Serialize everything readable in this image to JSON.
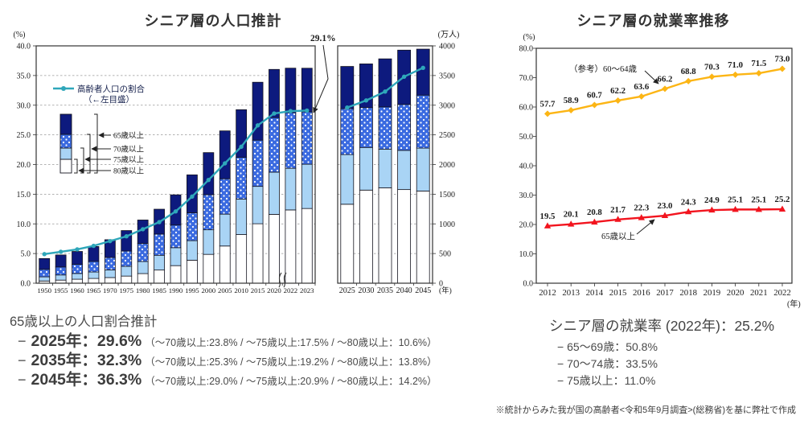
{
  "colors": {
    "navy": "#0d1a7e",
    "royal": "#3a6ae0",
    "light_blue": "#a9d4f5",
    "white": "#ffffff",
    "teal": "#2fa7ba",
    "yellow": "#fcb514",
    "red": "#f2141e",
    "grid": "#999999",
    "axis": "#333333",
    "text": "#1a1a1a"
  },
  "chart_data": [
    {
      "type": "bar+line",
      "title": "シニア層の人口推計",
      "left_axis": {
        "caption": "(%)",
        "min": 0,
        "max": 40,
        "step": 5
      },
      "right_axis": {
        "caption": "(万人)",
        "min": 0,
        "max": 4000,
        "step": 500
      },
      "x_caption": "(年)",
      "grid": true,
      "legend_line": {
        "name": "高齢者人口の割合",
        "note": "（←左目盛）"
      },
      "segment_labels": [
        "65歳以上",
        "70歳以上",
        "75歳以上",
        "80歳以上"
      ],
      "annotation": "29.1%",
      "panels": [
        {
          "categories": [
            "1950",
            "1955",
            "1960",
            "1965",
            "1970",
            "1975",
            "1980",
            "1985",
            "1990",
            "1995",
            "2000",
            "2005",
            "2010",
            "2015",
            "2020",
            "2022",
            "2023"
          ],
          "stacks": [
            {
              "name": "80歳以上",
              "fill": "white",
              "cumulative": [
                37,
                52,
                67,
                80,
                95,
                120,
                162,
                222,
                296,
                388,
                486,
                627,
                820,
                1002,
                1160,
                1235,
                1259
              ]
            },
            {
              "name": "75歳以上",
              "fill": "light_blue",
              "cumulative": [
                107,
                139,
                164,
                189,
                224,
                284,
                366,
                471,
                599,
                717,
                900,
                1164,
                1419,
                1632,
                1872,
                1937,
                2005
              ]
            },
            {
              "name": "70歳以上",
              "fill": "dots",
              "cumulative": [
                234,
                274,
                319,
                368,
                434,
                542,
                669,
                828,
                980,
                1187,
                1492,
                1760,
                2121,
                2411,
                2791,
                2873,
                2889
              ]
            },
            {
              "name": "65歳以上",
              "fill": "navy",
              "cumulative": [
                416,
                476,
                535,
                618,
                733,
                887,
                1065,
                1247,
                1489,
                1826,
                2201,
                2567,
                2924,
                3387,
                3603,
                3624,
                3623
              ]
            }
          ],
          "ratio_percent": [
            4.9,
            5.3,
            5.7,
            6.3,
            7.1,
            7.9,
            9.1,
            10.3,
            12.1,
            14.6,
            17.4,
            20.2,
            23.0,
            26.6,
            28.6,
            29.0,
            29.1
          ]
        },
        {
          "categories": [
            "2025",
            "2030",
            "2035",
            "2040",
            "2045"
          ],
          "stacks": [
            {
              "name": "80歳以上",
              "fill": "white",
              "cumulative": [
                1331,
                1569,
                1607,
                1578,
                1553
              ]
            },
            {
              "name": "75歳以上",
              "fill": "light_blue",
              "cumulative": [
                2168,
                2288,
                2260,
                2239,
                2277
              ]
            },
            {
              "name": "70歳以上",
              "fill": "dots",
              "cumulative": [
                2941,
                2960,
                2971,
                3013,
                3170
              ]
            },
            {
              "name": "65歳以上",
              "fill": "navy",
              "cumulative": [
                3653,
                3696,
                3781,
                3928,
                3945
              ]
            }
          ],
          "ratio_percent": [
            29.6,
            30.8,
            32.3,
            34.8,
            36.3
          ]
        }
      ]
    },
    {
      "type": "line",
      "title": "シニア層の就業率推移",
      "axis": {
        "caption": "(%)",
        "min": 0,
        "max": 80,
        "step": 10
      },
      "x_caption": "(年)",
      "x": [
        "2012",
        "2013",
        "2014",
        "2015",
        "2016",
        "2017",
        "2018",
        "2019",
        "2020",
        "2021",
        "2022"
      ],
      "series": [
        {
          "name": "（参考）60〜64歳",
          "marker": "diamond",
          "color_key": "yellow",
          "values": [
            "57.7",
            "58.9",
            "60.7",
            "62.2",
            "63.6",
            "66.2",
            "68.8",
            "70.3",
            "71.0",
            "71.5",
            "73.0"
          ]
        },
        {
          "name": "65歳以上",
          "marker": "triangle",
          "color_key": "red",
          "values": [
            "19.5",
            "20.1",
            "20.8",
            "21.7",
            "22.3",
            "23.0",
            "24.3",
            "24.9",
            "25.1",
            "25.1",
            "25.2"
          ]
        }
      ],
      "annotations": [
        {
          "text": "（参考）60〜64歳"
        },
        {
          "text": "65歳以上"
        }
      ]
    }
  ],
  "left_summary": {
    "heading": "65歳以上の人口割合推計",
    "rows": [
      {
        "dash": "−",
        "main": "2025年：29.6%",
        "detail": "（〜70歳以上:23.8% / 〜75歳以上:17.5% / 〜80歳以上：10.6%）"
      },
      {
        "dash": "−",
        "main": "2035年：32.3%",
        "detail": "（〜70歳以上:25.3% / 〜75歳以上:19.2% / 〜80歳以上：13.8%）"
      },
      {
        "dash": "−",
        "main": "2045年：36.3%",
        "detail": "（〜70歳以上:29.0% / 〜75歳以上:20.9% / 〜80歳以上：14.2%）"
      }
    ]
  },
  "right_summary": {
    "heading": "シニア層の就業率 (2022年)：25.2%",
    "rows": [
      "− 65〜69歳：50.8%",
      "− 70〜74歳：33.5%",
      "− 75歳以上：11.0%"
    ]
  },
  "footnote": "※統計からみた我が国の高齢者<令和5年9月調査>(総務省)を基に弊社で作成"
}
